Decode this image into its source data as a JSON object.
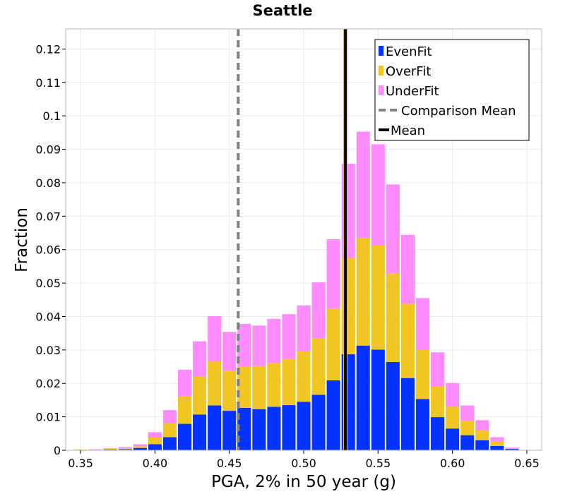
{
  "chart_data": {
    "type": "bar",
    "stacked": true,
    "title": "Seattle",
    "xlabel": "PGA, 2% in 50 year (g)",
    "ylabel": "Fraction",
    "xlim": [
      0.34,
      0.66
    ],
    "ylim": [
      0,
      0.126
    ],
    "xticks": [
      0.35,
      0.4,
      0.45,
      0.5,
      0.55,
      0.6,
      0.65
    ],
    "xtick_labels": [
      "0.35",
      "0.40",
      "0.45",
      "0.50",
      "0.55",
      "0.60",
      "0.65"
    ],
    "yticks": [
      0,
      0.01,
      0.02,
      0.03,
      0.04,
      0.05,
      0.06,
      0.07,
      0.08,
      0.09,
      0.1,
      0.11,
      0.12
    ],
    "ytick_labels": [
      "0",
      "0.01",
      "0.02",
      "0.03",
      "0.04",
      "0.05",
      "0.06",
      "0.07",
      "0.08",
      "0.09",
      "0.1",
      "0.11",
      "0.12"
    ],
    "grid": true,
    "legend_position": "top-right",
    "bin_width": 0.01,
    "x": [
      0.35,
      0.36,
      0.37,
      0.38,
      0.39,
      0.4,
      0.41,
      0.42,
      0.43,
      0.44,
      0.45,
      0.46,
      0.47,
      0.48,
      0.49,
      0.5,
      0.51,
      0.52,
      0.53,
      0.54,
      0.55,
      0.56,
      0.57,
      0.58,
      0.59,
      0.6,
      0.61,
      0.62,
      0.63,
      0.64,
      0.65
    ],
    "series": [
      {
        "name": "EvenFit",
        "color": "#0433ff",
        "values": [
          0.0001,
          0.0001,
          0.0002,
          0.0003,
          0.0007,
          0.0018,
          0.0039,
          0.0079,
          0.0107,
          0.0134,
          0.0118,
          0.0127,
          0.0123,
          0.013,
          0.0135,
          0.0145,
          0.0166,
          0.0209,
          0.0287,
          0.0313,
          0.0301,
          0.0264,
          0.0216,
          0.0153,
          0.0099,
          0.0065,
          0.0045,
          0.003,
          0.0013,
          0.0004,
          0
        ]
      },
      {
        "name": "OverFit",
        "color": "#f1c622",
        "values": [
          0.0001,
          0.0001,
          0.0002,
          0.0003,
          0.0005,
          0.002,
          0.0041,
          0.0082,
          0.0113,
          0.0131,
          0.012,
          0.0123,
          0.0129,
          0.0131,
          0.0138,
          0.0151,
          0.0168,
          0.0215,
          0.0288,
          0.0322,
          0.0311,
          0.0266,
          0.0222,
          0.0147,
          0.0093,
          0.0065,
          0.0043,
          0.0029,
          0.0013,
          0.0002,
          0
        ]
      },
      {
        "name": "UnderFit",
        "color": "#ff8cff",
        "values": [
          0,
          0.0001,
          0.0002,
          0.0003,
          0.0006,
          0.0016,
          0.004,
          0.008,
          0.0106,
          0.0136,
          0.0116,
          0.0128,
          0.0121,
          0.0132,
          0.0134,
          0.0137,
          0.0168,
          0.0207,
          0.0282,
          0.0318,
          0.0303,
          0.0265,
          0.0206,
          0.0155,
          0.0101,
          0.0071,
          0.0046,
          0.0031,
          0.0013,
          0.0002,
          0
        ]
      }
    ],
    "lines": [
      {
        "name": "Comparison Mean",
        "x": 0.456,
        "color": "#808080",
        "style": "dashed"
      },
      {
        "name": "Mean",
        "x": 0.528,
        "color": "#000000",
        "style": "solid"
      }
    ]
  }
}
